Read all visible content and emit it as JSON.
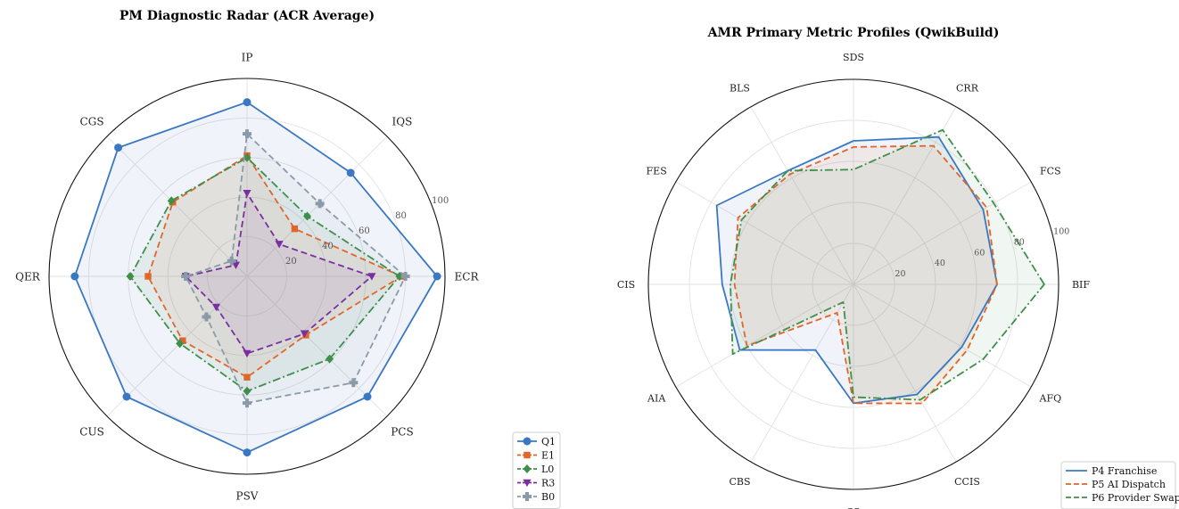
{
  "chart_data": [
    {
      "type": "radar",
      "title": "PM Diagnostic Radar (ACR Average)",
      "categories": [
        "ECR",
        "IQS",
        "IP",
        "CGS",
        "QER",
        "CUS",
        "PSV",
        "PCS"
      ],
      "rlim": [
        0,
        100
      ],
      "rticks": [
        20,
        40,
        60,
        80,
        100
      ],
      "grid": true,
      "legend_placement": "bottom-right",
      "series": [
        {
          "name": "Q1",
          "color": "#3a78c2",
          "linestyle": "solid",
          "marker": "circle",
          "values": [
            96,
            74,
            88,
            92,
            87,
            86,
            89,
            86
          ]
        },
        {
          "name": "E1",
          "color": "#e0662a",
          "linestyle": "dashed",
          "marker": "square",
          "values": [
            78,
            34,
            61,
            53,
            50,
            46,
            51,
            42
          ]
        },
        {
          "name": "L0",
          "color": "#3f8f4a",
          "linestyle": "dashdot",
          "marker": "diamond",
          "values": [
            77,
            43,
            60,
            54,
            59,
            48,
            58,
            59
          ]
        },
        {
          "name": "R3",
          "color": "#7a2fa0",
          "linestyle": "dashed",
          "marker": "triangle-down",
          "values": [
            63,
            23,
            42,
            8,
            31,
            22,
            39,
            41
          ]
        },
        {
          "name": "B0",
          "color": "#8a9aa8",
          "linestyle": "dashed",
          "marker": "plus",
          "values": [
            80,
            52,
            72,
            11,
            31,
            29,
            64,
            76
          ]
        }
      ]
    },
    {
      "type": "radar",
      "title": "AMR Primary Metric Profiles (QwikBuild)",
      "categories": [
        "BIF",
        "FCS",
        "CRR",
        "SDS",
        "BLS",
        "FES",
        "CIS",
        "AIA",
        "CBS",
        "SS",
        "CCIS",
        "AFQ"
      ],
      "rlim": [
        0,
        100
      ],
      "rticks": [
        20,
        40,
        60,
        80,
        100
      ],
      "grid": true,
      "legend_placement": "bottom-right",
      "series": [
        {
          "name": "P4 Franchise",
          "color": "#3a78c2",
          "linestyle": "solid",
          "values": [
            70,
            73,
            83,
            70,
            64,
            77,
            64,
            64,
            37,
            58,
            62,
            61
          ]
        },
        {
          "name": "P5 AI Dispatch",
          "color": "#e0662a",
          "linestyle": "dashed",
          "values": [
            70,
            75,
            78,
            67,
            62,
            65,
            58,
            60,
            16,
            58,
            67,
            64
          ]
        },
        {
          "name": "P6 Provider Swap",
          "color": "#3f8f4a",
          "linestyle": "dashdot",
          "values": [
            93,
            79,
            87,
            56,
            64,
            63,
            60,
            68,
            10,
            55,
            65,
            73
          ]
        }
      ]
    }
  ]
}
